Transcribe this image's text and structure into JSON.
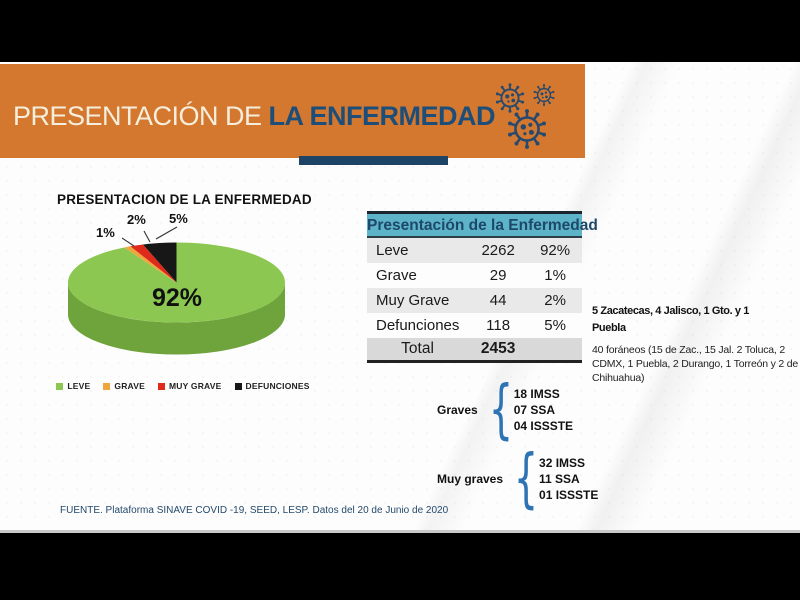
{
  "banner": {
    "title_regular": "PRESENTACIÓN DE ",
    "title_bold": "LA ENFERMEDAD",
    "bg_color": "#d4782f",
    "title_regular_color": "#f5eedc",
    "title_bold_color": "#1d4e79",
    "accent_bar_color": "#1d4466",
    "icon": "coronavirus-icon",
    "icon_color": "#27496d"
  },
  "chart_data": {
    "type": "pie",
    "effect": "3d",
    "title": "PRESENTACION DE LA ENFERMEDAD",
    "categories": [
      "LEVE",
      "GRAVE",
      "MUY GRAVE",
      "DEFUNCIONES"
    ],
    "values": [
      92,
      1,
      2,
      5
    ],
    "slice_labels": [
      "92%",
      "1%",
      "2%",
      "5%"
    ],
    "counts": [
      2262,
      29,
      44,
      118
    ],
    "colors": [
      "#8cc851",
      "#efa73d",
      "#df2a1b",
      "#171717"
    ],
    "side_color": "#6fa33c",
    "legend_position": "bottom"
  },
  "table": {
    "header": "Presentación de la Enfermedad",
    "header_bg": "#5db3c8",
    "header_text_color": "#1d4868",
    "rows": [
      {
        "label": "Leve",
        "value": "2262",
        "pct": "92%"
      },
      {
        "label": "Grave",
        "value": "29",
        "pct": "1%"
      },
      {
        "label": "Muy Grave",
        "value": "44",
        "pct": "2%"
      },
      {
        "label": "Defunciones",
        "value": "118",
        "pct": "5%"
      }
    ],
    "total_label": "Total",
    "total_value": "2453"
  },
  "notes": {
    "heading_line1": "5 Zacatecas, 4  Jalisco, 1 Gto. y 1",
    "heading_line2": "Puebla",
    "body": "40 foráneos (15 de Zac., 15 Jal. 2 Toluca, 2 CDMX, 1 Puebla, 2 Durango, 1 Torreón y 2 de Chihuahua)"
  },
  "groups": [
    {
      "label": "Graves",
      "items": [
        "18 IMSS",
        "07 SSA",
        "04 ISSSTE"
      ]
    },
    {
      "label": "Muy graves",
      "items": [
        "32 IMSS",
        "11 SSA",
        "01 ISSSTE"
      ]
    }
  ],
  "footer": {
    "source": "FUENTE. Plataforma SINAVE COVID -19, SEED, LESP. Datos del 20 de Junio de 2020"
  }
}
